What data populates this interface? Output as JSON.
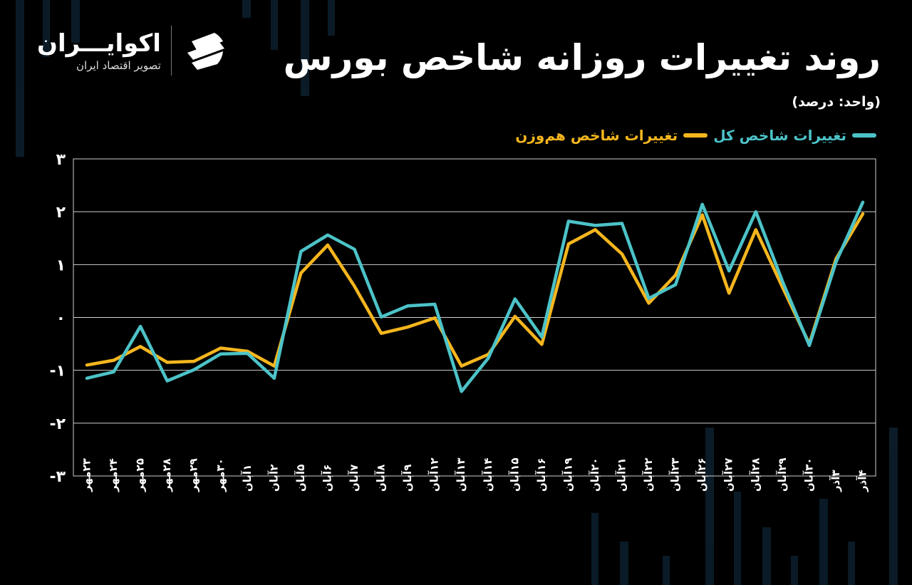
{
  "header": {
    "title": "روند تغییرات روزانه شاخص بورس",
    "unit": "(واحد: درصد)"
  },
  "logo": {
    "name": "اکوایـــران",
    "subtitle": "تصویر اقتصاد ایران",
    "icon": "ecoiran-logo-icon"
  },
  "colors": {
    "background": "#000000",
    "total_index": "#4cc3c8",
    "equal_weight_index": "#f5b61e",
    "grid": "#cfcfcf"
  },
  "chart_data": {
    "type": "line",
    "title": "روند تغییرات روزانه شاخص بورس",
    "ylabel": "(واحد: درصد)",
    "ylim": [
      -3,
      3
    ],
    "yticks": [
      3,
      2,
      1,
      0,
      -1,
      -2,
      -3
    ],
    "ytick_labels": [
      "۳",
      "۲",
      "۱",
      "۰",
      "-۱",
      "-۲",
      "-۳"
    ],
    "grid": true,
    "legend_position": "top-right",
    "categories": [
      "۲۳مهر",
      "۲۴مهر",
      "۲۵مهر",
      "۲۸مهر",
      "۲۹مهر",
      "۳۰مهر",
      "۱آبان",
      "۲آبان",
      "۵آبان",
      "۶آبان",
      "۷آبان",
      "۸آبان",
      "۹آبان",
      "۱۲آبان",
      "۱۳آبان",
      "۱۴آبان",
      "۱۵آبان",
      "۱۶آبان",
      "۱۹آبان",
      "۲۰آبان",
      "۲۱آبان",
      "۲۲آبان",
      "۲۳آبان",
      "۲۶آبان",
      "۲۷آبان",
      "۲۸آبان",
      "۲۹آبان",
      "۳۰آبان",
      "۳آذر",
      "۴آذر"
    ],
    "series": [
      {
        "name": "تغییرات شاخص کل",
        "color": "#4cc3c8",
        "values": [
          -1.15,
          -1.03,
          -0.17,
          -1.2,
          -0.99,
          -0.69,
          -0.68,
          -1.15,
          1.25,
          1.56,
          1.29,
          0.01,
          0.22,
          0.25,
          -1.4,
          -0.77,
          0.35,
          -0.37,
          1.82,
          1.74,
          1.78,
          0.36,
          0.62,
          2.14,
          0.88,
          2.0,
          0.68,
          -0.53,
          1.05,
          2.18
        ]
      },
      {
        "name": "تغییرات شاخص هم‌وزن",
        "color": "#f5b61e",
        "values": [
          -0.9,
          -0.81,
          -0.55,
          -0.85,
          -0.83,
          -0.58,
          -0.64,
          -0.92,
          0.84,
          1.37,
          0.59,
          -0.3,
          -0.18,
          -0.01,
          -0.92,
          -0.7,
          0.02,
          -0.51,
          1.39,
          1.66,
          1.2,
          0.27,
          0.8,
          1.94,
          0.46,
          1.66,
          0.57,
          -0.5,
          1.11,
          1.96
        ]
      }
    ]
  }
}
